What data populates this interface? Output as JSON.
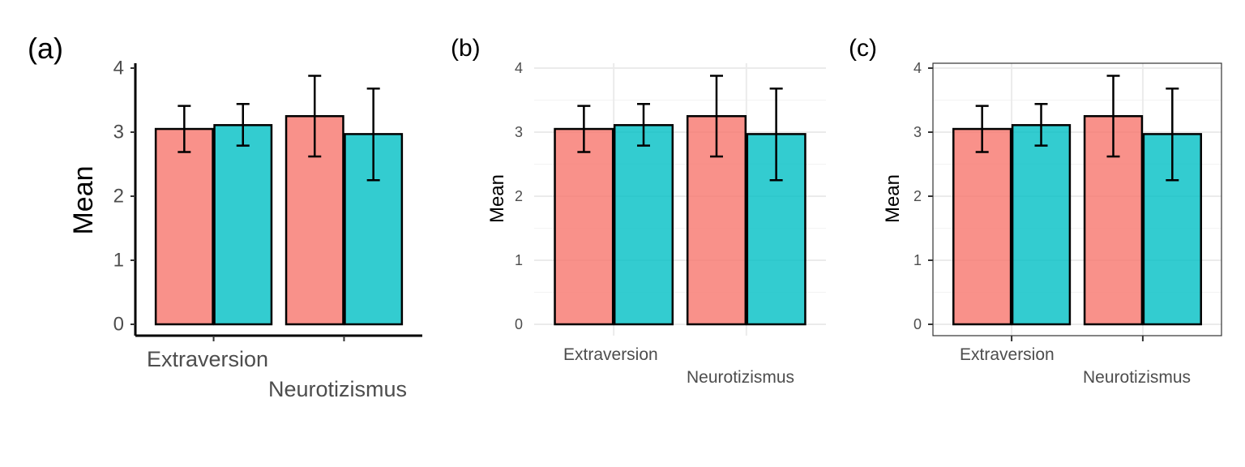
{
  "chart_data": [
    {
      "panel_label": "(a)",
      "type": "bar",
      "theme": "classic",
      "categories": [
        "Extraversion",
        "Neurotizismus"
      ],
      "series": [
        {
          "color": "#F8766D",
          "values": [
            3.05,
            3.25
          ],
          "error_low": [
            2.69,
            2.62
          ],
          "error_high": [
            3.41,
            3.88
          ]
        },
        {
          "color": "#00BFC4",
          "values": [
            3.11,
            2.97
          ],
          "error_low": [
            2.79,
            2.25
          ],
          "error_high": [
            3.44,
            3.68
          ]
        }
      ],
      "xlabel": "",
      "ylabel": "Mean",
      "ylim": [
        0,
        4
      ],
      "yticks": [
        "0",
        "1",
        "2",
        "3",
        "4"
      ],
      "grid": false
    },
    {
      "panel_label": "(b)",
      "type": "bar",
      "theme": "minimal",
      "categories": [
        "Extraversion",
        "Neurotizismus"
      ],
      "series": [
        {
          "color": "#F8766D",
          "values": [
            3.05,
            3.25
          ],
          "error_low": [
            2.69,
            2.62
          ],
          "error_high": [
            3.41,
            3.88
          ]
        },
        {
          "color": "#00BFC4",
          "values": [
            3.11,
            2.97
          ],
          "error_low": [
            2.79,
            2.25
          ],
          "error_high": [
            3.44,
            3.68
          ]
        }
      ],
      "xlabel": "",
      "ylabel": "Mean",
      "ylim": [
        0,
        4
      ],
      "yticks": [
        "0",
        "1",
        "2",
        "3",
        "4"
      ],
      "grid": true
    },
    {
      "panel_label": "(c)",
      "type": "bar",
      "theme": "bw",
      "categories": [
        "Extraversion",
        "Neurotizismus"
      ],
      "series": [
        {
          "color": "#F8766D",
          "values": [
            3.05,
            3.25
          ],
          "error_low": [
            2.69,
            2.62
          ],
          "error_high": [
            3.41,
            3.88
          ]
        },
        {
          "color": "#00BFC4",
          "values": [
            3.11,
            2.97
          ],
          "error_low": [
            2.79,
            2.25
          ],
          "error_high": [
            3.44,
            3.68
          ]
        }
      ],
      "xlabel": "",
      "ylabel": "Mean",
      "ylim": [
        0,
        4
      ],
      "yticks": [
        "0",
        "1",
        "2",
        "3",
        "4"
      ],
      "grid": true
    }
  ]
}
